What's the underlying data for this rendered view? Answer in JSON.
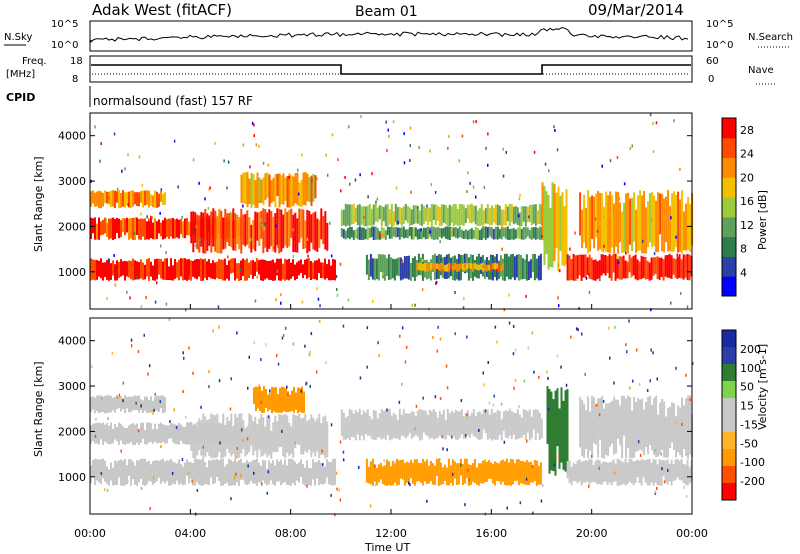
{
  "header": {
    "station": "Adak West (fitACF)",
    "beam": "Beam 01",
    "date": "09/Mar/2014"
  },
  "panels": {
    "nsky_label": "N.Sky",
    "nsearch_label": "N.Search",
    "nsky_ticks": [
      "10^5",
      "10^0"
    ],
    "nsearch_ticks": [
      "10^5",
      "10^0"
    ],
    "freq_label": "Freq.",
    "freq_unit": "[MHz]",
    "freq_ticks": [
      "18",
      "8"
    ],
    "nave_label": "Nave",
    "nave_ticks": [
      "60",
      "0"
    ],
    "cpid_label": "CPID",
    "cpid_text": "normalsound (fast) 157 RF"
  },
  "colors": {
    "power": [
      "#0000ff",
      "#2a3fa8",
      "#2e7d4a",
      "#5fa15a",
      "#9ccb3c",
      "#f2c000",
      "#ff8c00",
      "#ff4a00",
      "#ff0000"
    ],
    "velocity": [
      "#ff0000",
      "#ff5000",
      "#ff9a00",
      "#ffb42a",
      "#c8c8c8",
      "#c8c8c8",
      "#7fd34a",
      "#2e7d32",
      "#2a3fa8",
      "#1a2aa0"
    ]
  },
  "chart_data": [
    {
      "type": "heatmap",
      "name": "power",
      "ylabel": "Slant Range [km]",
      "ylim": [
        180,
        4500
      ],
      "yticks": [
        1000,
        2000,
        3000,
        4000
      ],
      "colorbar": {
        "label": "Power [dB]",
        "ticks": [
          4,
          8,
          12,
          16,
          20,
          24,
          28
        ],
        "range": [
          0,
          30
        ]
      },
      "bands": [
        {
          "t0": 0.0,
          "t1": 9.8,
          "r0": 800,
          "r1": 1300,
          "level": 28
        },
        {
          "t0": 0.0,
          "t1": 6.0,
          "r0": 1700,
          "r1": 2200,
          "level": 26
        },
        {
          "t0": 0.0,
          "t1": 3.0,
          "r0": 2400,
          "r1": 2800,
          "level": 22
        },
        {
          "t0": 4.0,
          "t1": 9.5,
          "r0": 1400,
          "r1": 2400,
          "level": 26
        },
        {
          "t0": 6.0,
          "t1": 9.0,
          "r0": 2400,
          "r1": 3200,
          "level": 20
        },
        {
          "t0": 10.0,
          "t1": 18.0,
          "r0": 2000,
          "r1": 2500,
          "level": 14
        },
        {
          "t0": 10.0,
          "t1": 18.0,
          "r0": 1700,
          "r1": 2000,
          "level": 10
        },
        {
          "t0": 11.0,
          "t1": 18.0,
          "r0": 800,
          "r1": 1400,
          "level": 8
        },
        {
          "t0": 13.0,
          "t1": 16.5,
          "r0": 1000,
          "r1": 1200,
          "level": 20
        },
        {
          "t0": 18.0,
          "t1": 19.0,
          "r0": 1000,
          "r1": 3000,
          "level": 18
        },
        {
          "t0": 19.0,
          "t1": 24.0,
          "r0": 800,
          "r1": 1400,
          "level": 28
        },
        {
          "t0": 19.5,
          "t1": 24.0,
          "r0": 1400,
          "r1": 2800,
          "level": 20
        }
      ]
    },
    {
      "type": "heatmap",
      "name": "velocity",
      "xlabel": "Time UT",
      "ylabel": "Slant Range [km]",
      "ylim": [
        180,
        4500
      ],
      "yticks": [
        1000,
        2000,
        3000,
        4000
      ],
      "xlim": [
        0,
        24
      ],
      "xticks": [
        "00:00",
        "04:00",
        "08:00",
        "12:00",
        "16:00",
        "20:00",
        "00:00"
      ],
      "colorbar": {
        "label": "Velocity [m s-1]",
        "ticks": [
          "200",
          "100",
          "50",
          "15",
          "-15",
          "-50",
          "-100",
          "-200"
        ]
      },
      "bands": [
        {
          "t0": 0.0,
          "t1": 9.8,
          "r0": 800,
          "r1": 1400,
          "level": 0
        },
        {
          "t0": 0.0,
          "t1": 6.0,
          "r0": 1700,
          "r1": 2200,
          "level": 0
        },
        {
          "t0": 0.0,
          "t1": 3.0,
          "r0": 2400,
          "r1": 2800,
          "level": 0
        },
        {
          "t0": 4.0,
          "t1": 9.5,
          "r0": 1400,
          "r1": 2400,
          "level": 0
        },
        {
          "t0": 6.5,
          "t1": 8.5,
          "r0": 2400,
          "r1": 3000,
          "level": -60
        },
        {
          "t0": 10.0,
          "t1": 18.0,
          "r0": 1800,
          "r1": 2500,
          "level": 0
        },
        {
          "t0": 11.0,
          "t1": 18.0,
          "r0": 800,
          "r1": 1400,
          "level": -60
        },
        {
          "t0": 18.2,
          "t1": 19.0,
          "r0": 1000,
          "r1": 3000,
          "level": 40
        },
        {
          "t0": 19.0,
          "t1": 24.0,
          "r0": 800,
          "r1": 1400,
          "level": 0
        },
        {
          "t0": 19.5,
          "t1": 24.0,
          "r0": 1400,
          "r1": 2800,
          "level": 0
        }
      ]
    }
  ]
}
